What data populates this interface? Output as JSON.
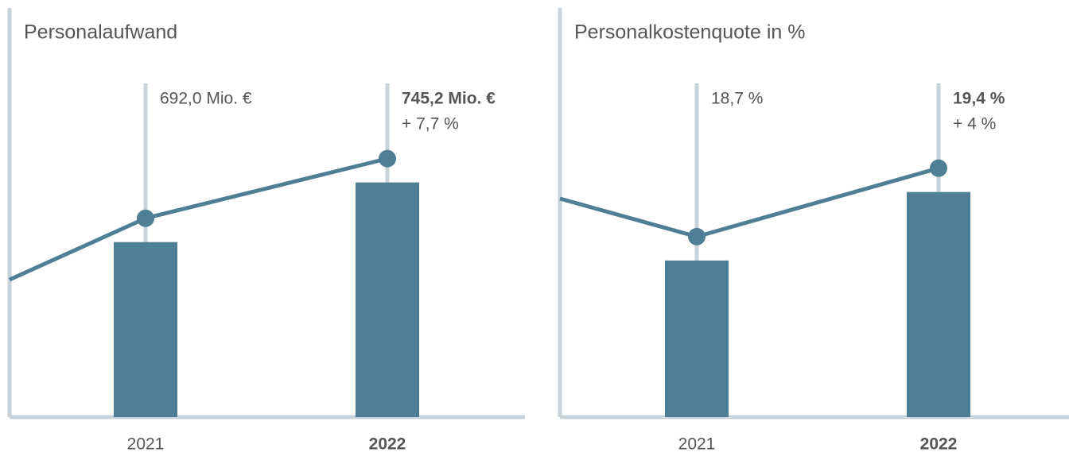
{
  "chart_data": [
    {
      "type": "bar",
      "title": "Personalaufwand",
      "categories": [
        "2021",
        "2022"
      ],
      "values": [
        692.0,
        745.2
      ],
      "value_labels": [
        "692,0 Mio. €",
        "745,2 Mio. €"
      ],
      "annotations": [
        "+ 7,7 %"
      ],
      "color": "#4f7f95",
      "line_color": "#4f7f95",
      "ylim": [
        536,
        837
      ]
    },
    {
      "type": "bar",
      "title": "Personalkostenquote in %",
      "categories": [
        "2021",
        "2022"
      ],
      "values": [
        18.7,
        19.4
      ],
      "value_labels": [
        "18,7 %",
        "19,4 %"
      ],
      "annotations": [
        "+ 4 %"
      ],
      "color": "#4f7f95",
      "line_color": "#4f7f95",
      "ylim": [
        17.1,
        20.55
      ]
    }
  ]
}
